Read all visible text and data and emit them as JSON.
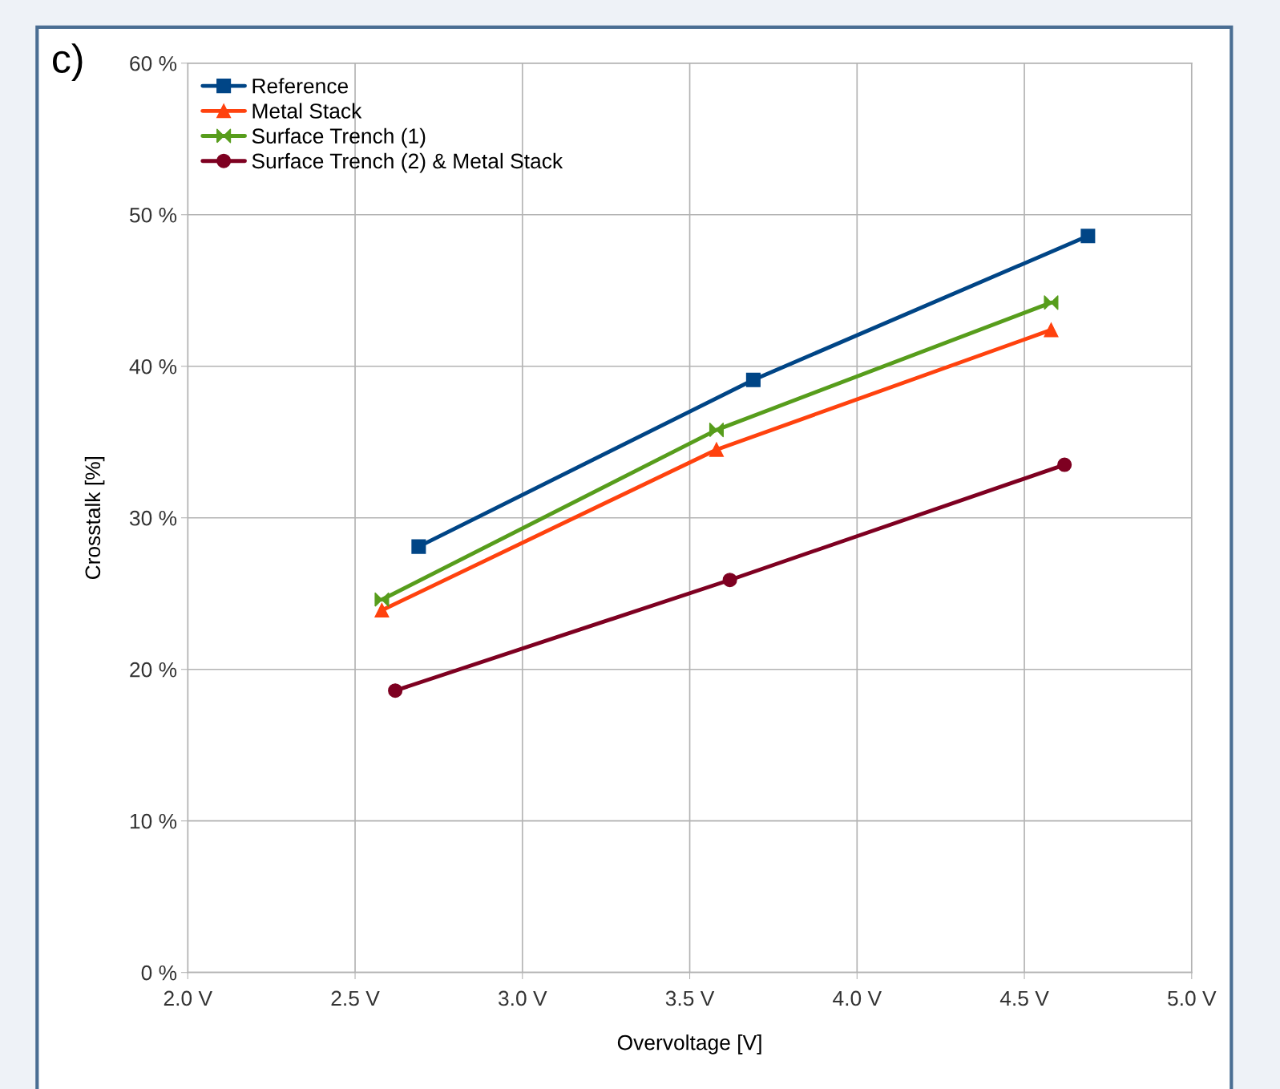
{
  "chart_data": {
    "type": "line",
    "xlabel": "Overvoltage [V]",
    "ylabel": "Crosstalk [%]",
    "annotations": [
      "c)"
    ],
    "xlim": [
      2.0,
      5.0
    ],
    "xticks": [
      {
        "value": 2.0,
        "label": "2.0 V"
      },
      {
        "value": 2.5,
        "label": "2.5 V"
      },
      {
        "value": 3.0,
        "label": "3.0 V"
      },
      {
        "value": 3.5,
        "label": "3.5 V"
      },
      {
        "value": 4.0,
        "label": "4.0 V"
      },
      {
        "value": 4.5,
        "label": "4.5 V"
      },
      {
        "value": 5.0,
        "label": "5.0 V"
      }
    ],
    "ylim": [
      0,
      60
    ],
    "yticks": [
      {
        "value": 0,
        "label": "0 %"
      },
      {
        "value": 10,
        "label": "10 %"
      },
      {
        "value": 20,
        "label": "20 %"
      },
      {
        "value": 30,
        "label": "30 %"
      },
      {
        "value": 40,
        "label": "40 %"
      },
      {
        "value": 50,
        "label": "50 %"
      },
      {
        "value": 60,
        "label": "60 %"
      }
    ],
    "grid": true,
    "legend": "top left",
    "line_style": "solid",
    "series": [
      {
        "name": "Reference",
        "color": "#004586",
        "marker": "square",
        "x": [
          2.69,
          3.69,
          4.69
        ],
        "values": [
          28.1,
          39.1,
          48.6
        ]
      },
      {
        "name": "Metal Stack",
        "color": "#ff420e",
        "marker": "triangle",
        "x": [
          2.58,
          3.58,
          4.58
        ],
        "values": [
          23.9,
          34.5,
          42.4
        ]
      },
      {
        "name": "Surface Trench (1)",
        "color": "#579d1c",
        "marker": "cross",
        "x": [
          2.58,
          3.58,
          4.58
        ],
        "values": [
          24.6,
          35.8,
          44.2
        ]
      },
      {
        "name": "Surface Trench (2) & Metal Stack",
        "color": "#7e0021",
        "marker": "circle",
        "x": [
          2.62,
          3.62,
          4.62
        ],
        "values": [
          18.6,
          25.9,
          33.5
        ]
      }
    ]
  }
}
